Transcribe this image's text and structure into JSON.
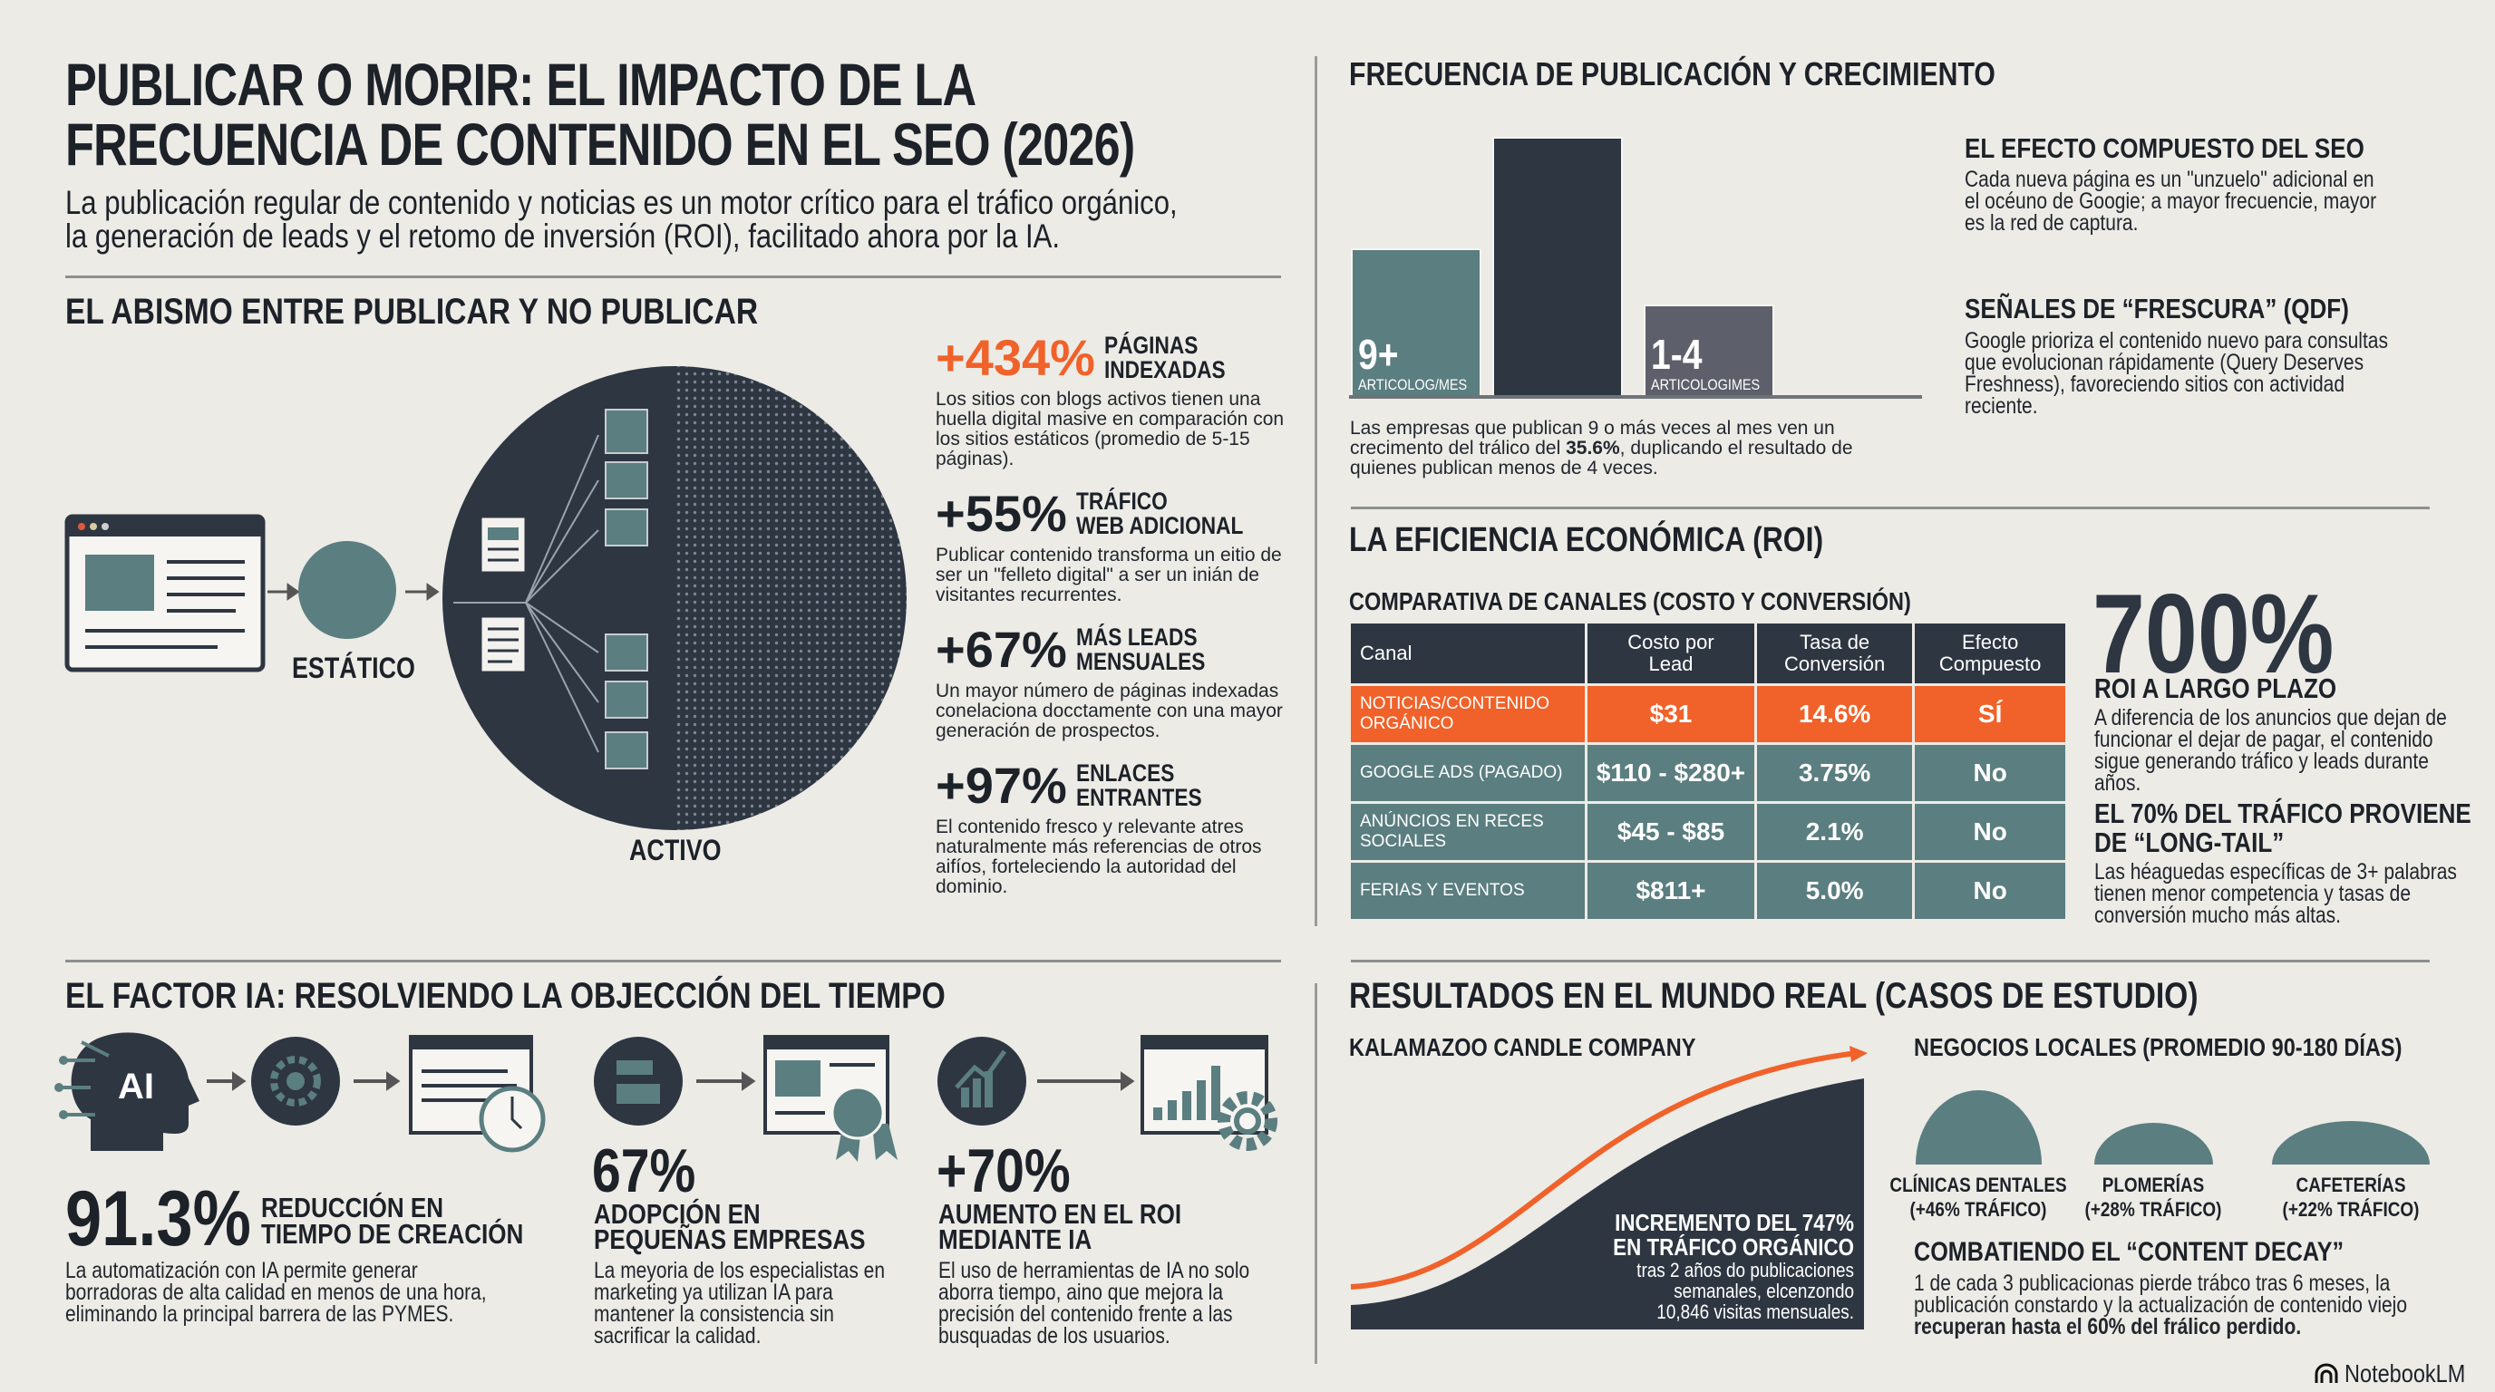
{
  "header": {
    "title_line1": "PUBLICAR O MORIR: EL IMPACTO DE LA",
    "title_line2": "FRECUENCIA DE CONTENIDO EN EL SEO (2026)",
    "subtitle_line1": "La publicación regular de contenido y noticias es un motor crítico para el tráfico orgánico,",
    "subtitle_line2": "la generación de leads y el retomo de inversión (ROI), facilitado ahora por la IA."
  },
  "abismo": {
    "heading": "EL ABISMO ENTRE PUBLICAR Y NO PUBLICAR",
    "static_label": "ESTÁTICO",
    "active_label": "ACTIVO",
    "stats": [
      {
        "value": "+434%",
        "label1": "PÁGINAS",
        "label2": "INDEXADAS",
        "text": "Los sitios con blogs activos tienen una huella digital masive en comparación con los sitios estáticos (promedio de 5-15 páginas)."
      },
      {
        "value": "+55%",
        "label1": "TRÁFICO",
        "label2": "WEB ADICIONAL",
        "text": "Publicar contenido transforma un eitio de ser un \"felleto digital\" a ser un inián de visitantes recurrentes."
      },
      {
        "value": "+67%",
        "label1": "MÁS LEADS",
        "label2": "MENSUALES",
        "text": "Un mayor número de páginas indexadas conelaciona docctamente con una mayor generación de prospectos."
      },
      {
        "value": "+97%",
        "label1": "ENLACES",
        "label2": "ENTRANTES",
        "text": "El contenido fresco y relevante atres naturalmente más referencias de otros aifíos, forteleciendo la autoridad del dominio."
      }
    ]
  },
  "frecuencia": {
    "heading": "FRECUENCIA DE PUBLICACIÓN Y CRECIMIENTO",
    "bars": [
      {
        "label": "9+",
        "sublabel": "ARTICOLOG/MES",
        "relative_height": 0.57,
        "color": "#5b7e80"
      },
      {
        "label": "",
        "sublabel": "",
        "relative_height": 1.0,
        "color": "#2e3642"
      },
      {
        "label": "1-4",
        "sublabel": "ARTICOLOGIMES",
        "relative_height": 0.35,
        "color": "#5d606b"
      }
    ],
    "caption_pre": "Las empresas que publican 9 o más veces al mes ven un crecimento del trálico del ",
    "caption_bold": "35.6%",
    "caption_post": ", duplicando el resultado de quienes publican menos de 4 veces.",
    "notes": [
      {
        "title": "EL EFECTO COMPUESTO DEL SEO",
        "text": "Cada nueva página es un \"unzuelo\" adicional en el océuno de Googie; a mayor frecuencie, mayor es la red de captura."
      },
      {
        "title": "SEÑALES DE “FRESCURA” (QDF)",
        "text": "Google prioriza el contenido nuevo para consultas que evolucionan rápidamente (Query Deserves Freshness), favoreciendo sitios con actividad reciente."
      }
    ]
  },
  "roi": {
    "heading": "LA EFICIENCIA ECONÓMICA (ROI)",
    "table_title": "COMPARATIVA DE CANALES (COSTO Y CONVERSIÓN)",
    "columns": [
      "Canal",
      "Costo por Lead",
      "Tasa de Conversión",
      "Efecto Compuesto"
    ],
    "rows": [
      [
        "NOTICIAS/CONTENIDO ORGÁNICO",
        "$31",
        "14.6%",
        "SÍ"
      ],
      [
        "GOOGLE ADS (PAGADO)",
        "$110 - $280+",
        "3.75%",
        "No"
      ],
      [
        "ANÚNCIOS EN RECES SOCIALES",
        "$45 - $85",
        "2.1%",
        "No"
      ],
      [
        "FERIAS Y EVENTOS",
        "$811+",
        "5.0%",
        "No"
      ]
    ],
    "big_value": "700%",
    "big_label": "ROI A LARGO PLAZO",
    "big_text": "A diferencia de los anuncios que dejan de funcionar el dejar de pagar, el contenido sigue generando tráfico y leads durante años.",
    "longtail_title": "EL 70% DEL TRÁFICO PROVIENE DE “LONG-TAIL”",
    "longtail_text": "Las héaguedas específicas de 3+ palabras tienen menor competencia y tasas de conversión mucho más altas."
  },
  "ia": {
    "heading": "EL FACTOR IA: RESOLVIENDO LA OBJECCIÓN DEL TIEMPO",
    "ai_badge": "AI",
    "stats": [
      {
        "value": "91.3%",
        "label1": "REDUCCIÓN EN",
        "label2": "TIEMPO DE CREACIÓN",
        "text": "La automatización con IA permite generar borradoras de alta calidad en menos de una hora, eliminando la principal barrera de las PYMES."
      },
      {
        "value": "67%",
        "label1": "ADOPCIÓN EN",
        "label2": "PEQUEÑAS EMPRESAS",
        "text": "La meyoria de los especialistas en marketing ya utilizan IA para mantener la consistencia sin sacrificar la calidad."
      },
      {
        "value": "+70%",
        "label1": "AUMENTO EN EL ROI",
        "label2": "MEDIANTE IA",
        "text": "El uso de herramientas de IA no solo aborra tiempo, aino que mejora la precisión del contenido frente a las busquadas de los usuarios."
      }
    ]
  },
  "casos": {
    "heading": "RESULTADOS EN EL MUNDO REAL (CASOS DE ESTUDIO)",
    "kalamazoo": {
      "title": "KALAMAZOO CANDLE COMPANY",
      "line1": "INCREMENTO DEL 747%",
      "line2": "EN TRÁFICO ORGÁNICO",
      "text1": "tras 2 años do publicaciones",
      "text2": "semanales, elcenzondo",
      "text3": "10,846 visitas mensuales."
    },
    "locales": {
      "title": "NEGOCIOS LOCALES (PROMEDIO 90-180 DÍAS)",
      "items": [
        {
          "name": "CLÍNICAS DENTALES",
          "value": "(+46% TRÁFICO)",
          "traffic_pct": 46
        },
        {
          "name": "PLOMERÍAS",
          "value": "(+28% TRÁFICO)",
          "traffic_pct": 28
        },
        {
          "name": "CAFETERÍAS",
          "value": "(+22% TRÁFICO)",
          "traffic_pct": 22
        }
      ]
    },
    "decay_title": "COMBATIENDO EL “CONTENT DECAY”",
    "decay_text": "1 de cada 3 publicacionas pierde trábco tras 6 meses, la publicación constardo y la actualización de contenido viejo ",
    "decay_bold": "recuperan hasta el 60% del frálico perdido."
  },
  "brand": "NotebookLM",
  "colors": {
    "background": "#ecebe6",
    "dark": "#2e3642",
    "teal": "#5b7e80",
    "orange": "#f0622a",
    "gray": "#5d606b"
  }
}
